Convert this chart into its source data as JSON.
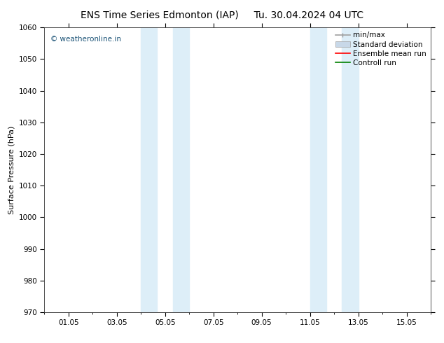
{
  "title_left": "ENS Time Series Edmonton (IAP)",
  "title_right": "Tu. 30.04.2024 04 UTC",
  "ylabel": "Surface Pressure (hPa)",
  "ylim": [
    970,
    1060
  ],
  "yticks": [
    970,
    980,
    990,
    1000,
    1010,
    1020,
    1030,
    1040,
    1050,
    1060
  ],
  "xlim_start": 0.0,
  "xlim_end": 16.0,
  "xtick_positions": [
    1,
    3,
    5,
    7,
    9,
    11,
    13,
    15
  ],
  "xtick_labels": [
    "01.05",
    "03.05",
    "05.05",
    "07.05",
    "09.05",
    "11.05",
    "13.05",
    "15.05"
  ],
  "shaded_bands": [
    {
      "xmin": 4.0,
      "xmax": 4.67
    },
    {
      "xmin": 5.33,
      "xmax": 6.0
    },
    {
      "xmin": 11.0,
      "xmax": 11.67
    },
    {
      "xmin": 12.33,
      "xmax": 13.0
    }
  ],
  "band_color": "#ddeef8",
  "watermark": "© weatheronline.in",
  "watermark_color": "#1a5276",
  "legend_items": [
    {
      "label": "min/max",
      "color": "#a0a0a0",
      "type": "line_with_caps"
    },
    {
      "label": "Standard deviation",
      "color": "#c8d8e8",
      "type": "rect"
    },
    {
      "label": "Ensemble mean run",
      "color": "#ff0000",
      "type": "line"
    },
    {
      "label": "Controll run",
      "color": "#008000",
      "type": "line"
    }
  ],
  "background_color": "#ffffff",
  "title_fontsize": 10,
  "axis_label_fontsize": 8,
  "tick_fontsize": 7.5,
  "legend_fontsize": 7.5
}
